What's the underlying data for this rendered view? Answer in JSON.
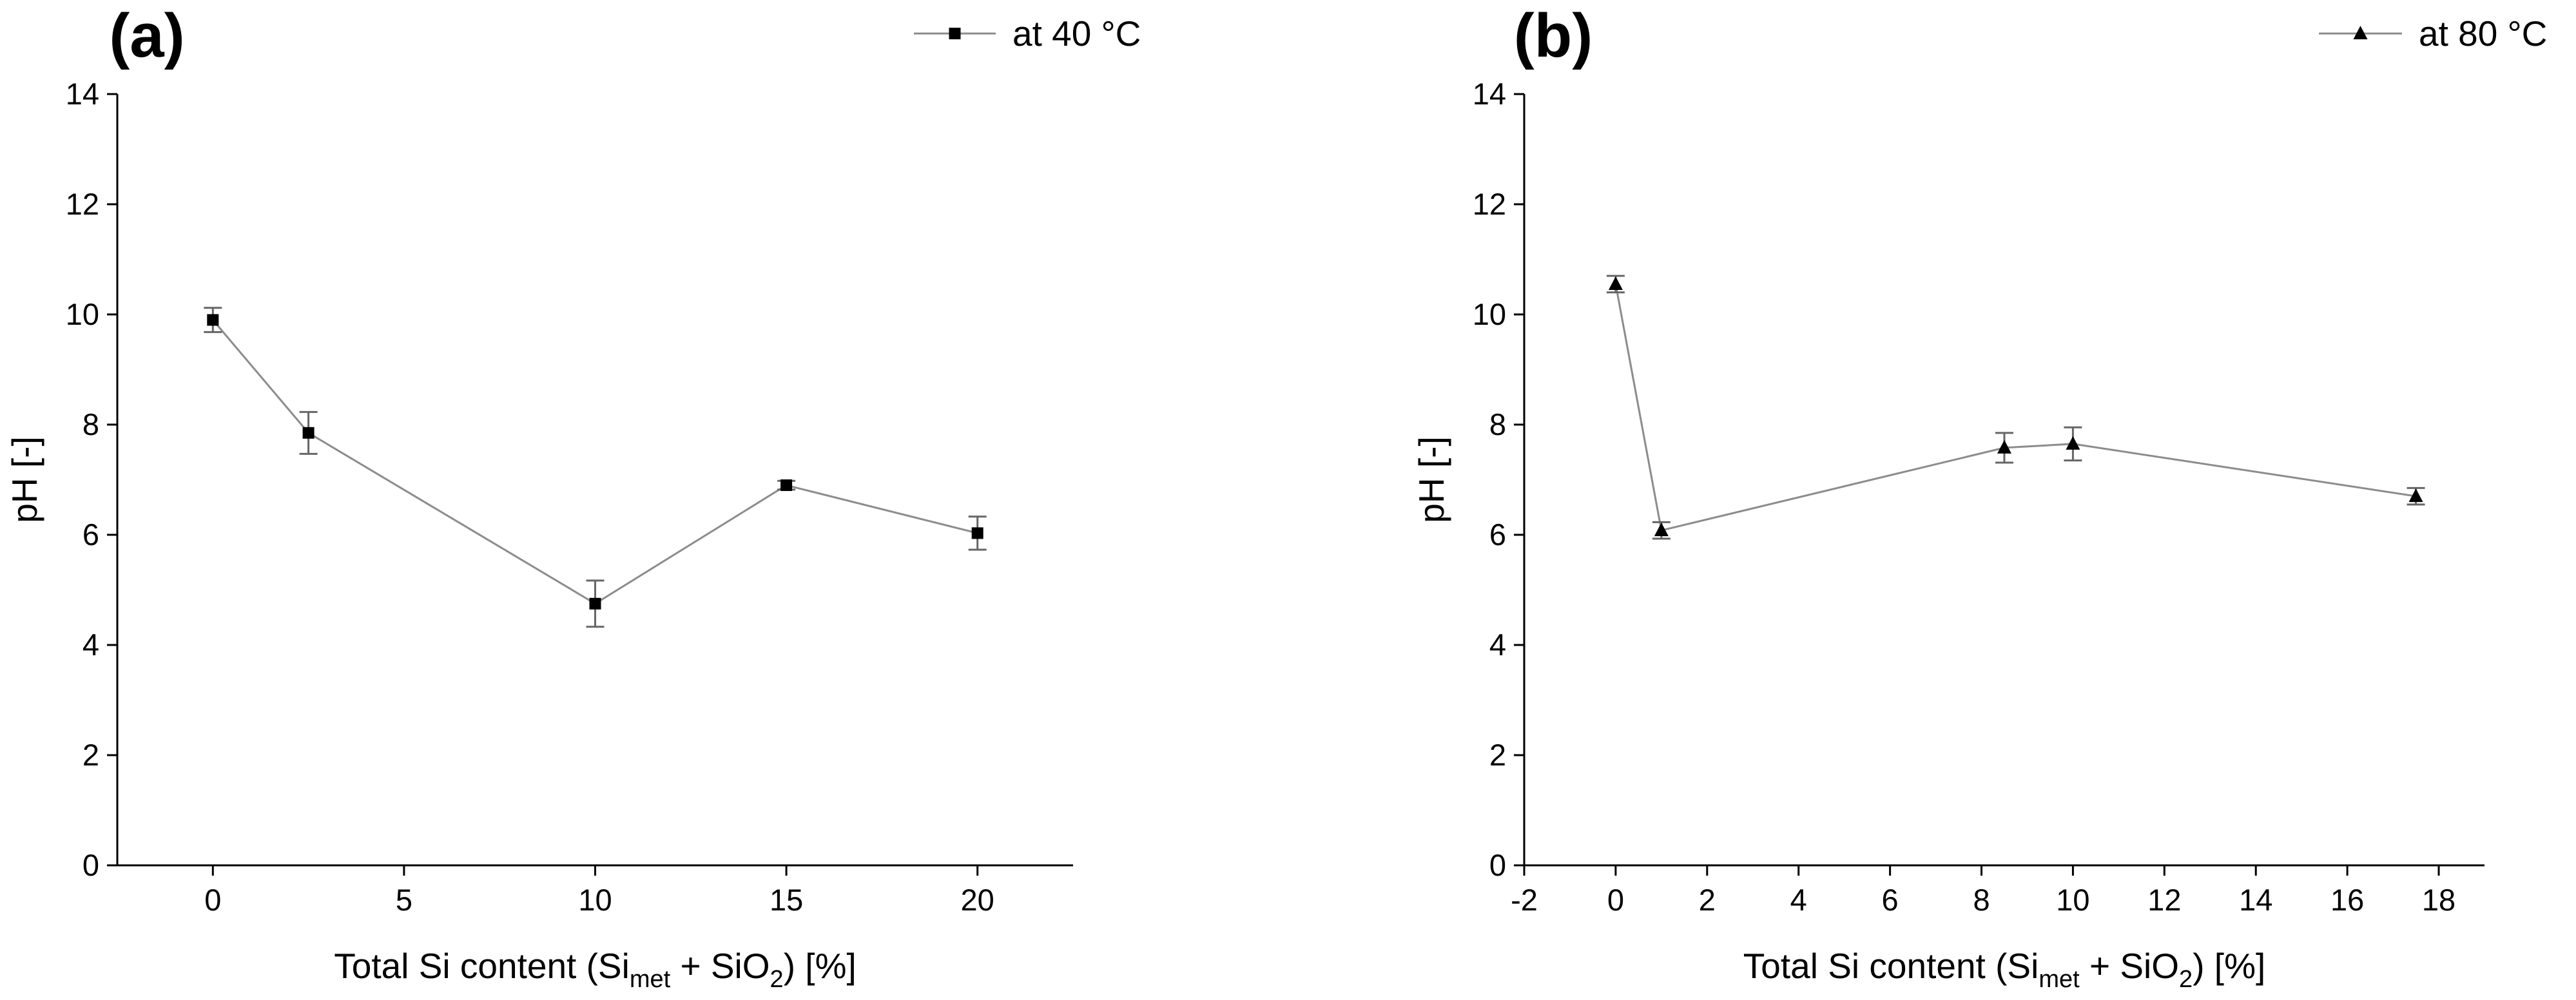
{
  "chart_data": [
    {
      "panel": "(a)",
      "type": "line",
      "xlabel": "Total Si content (Si",
      "xlabel_sub1": "met",
      "xlabel_mid": " + SiO",
      "xlabel_sub2": "2",
      "xlabel_end": ") [%]",
      "ylabel": "pH [-]",
      "xlim": [
        -2.5,
        22.5
      ],
      "ylim": [
        0,
        14
      ],
      "xticks": [
        0,
        5,
        10,
        15,
        20
      ],
      "xtick_labels": [
        "0",
        "5",
        "10",
        "15",
        "20"
      ],
      "yticks": [
        0,
        2,
        4,
        6,
        8,
        10,
        12,
        14
      ],
      "ytick_labels": [
        "0",
        "2",
        "4",
        "6",
        "8",
        "10",
        "12",
        "14"
      ],
      "legend_position": "top-right",
      "series": [
        {
          "name": "at 40 °C",
          "marker": "square",
          "color": "#000000",
          "line_color": "#8c8c8c",
          "x": [
            0,
            2.5,
            10,
            15,
            20
          ],
          "y": [
            9.9,
            7.85,
            4.75,
            6.9,
            6.03
          ],
          "err": [
            0.22,
            0.38,
            0.42,
            0.08,
            0.3
          ]
        }
      ]
    },
    {
      "panel": "(b)",
      "type": "line",
      "xlabel": "Total Si content (Si",
      "xlabel_sub1": "met",
      "xlabel_mid": " + SiO",
      "xlabel_sub2": "2",
      "xlabel_end": ") [%]",
      "ylabel": "pH [-]",
      "xlim": [
        -2,
        19
      ],
      "ylim": [
        0,
        14
      ],
      "xticks": [
        -2,
        0,
        2,
        4,
        6,
        8,
        10,
        12,
        14,
        16,
        18
      ],
      "xtick_labels": [
        "-2",
        "0",
        "2",
        "4",
        "6",
        "8",
        "10",
        "12",
        "14",
        "16",
        "18"
      ],
      "yticks": [
        0,
        2,
        4,
        6,
        8,
        10,
        12,
        14
      ],
      "ytick_labels": [
        "0",
        "2",
        "4",
        "6",
        "8",
        "10",
        "12",
        "14"
      ],
      "legend_position": "top-right",
      "series": [
        {
          "name": "at 80 °C",
          "marker": "triangle",
          "color": "#000000",
          "line_color": "#8c8c8c",
          "x": [
            0,
            1,
            8.5,
            10,
            17.5
          ],
          "y": [
            10.55,
            6.08,
            7.58,
            7.65,
            6.7
          ],
          "err": [
            0.15,
            0.15,
            0.27,
            0.3,
            0.15
          ]
        }
      ]
    }
  ]
}
